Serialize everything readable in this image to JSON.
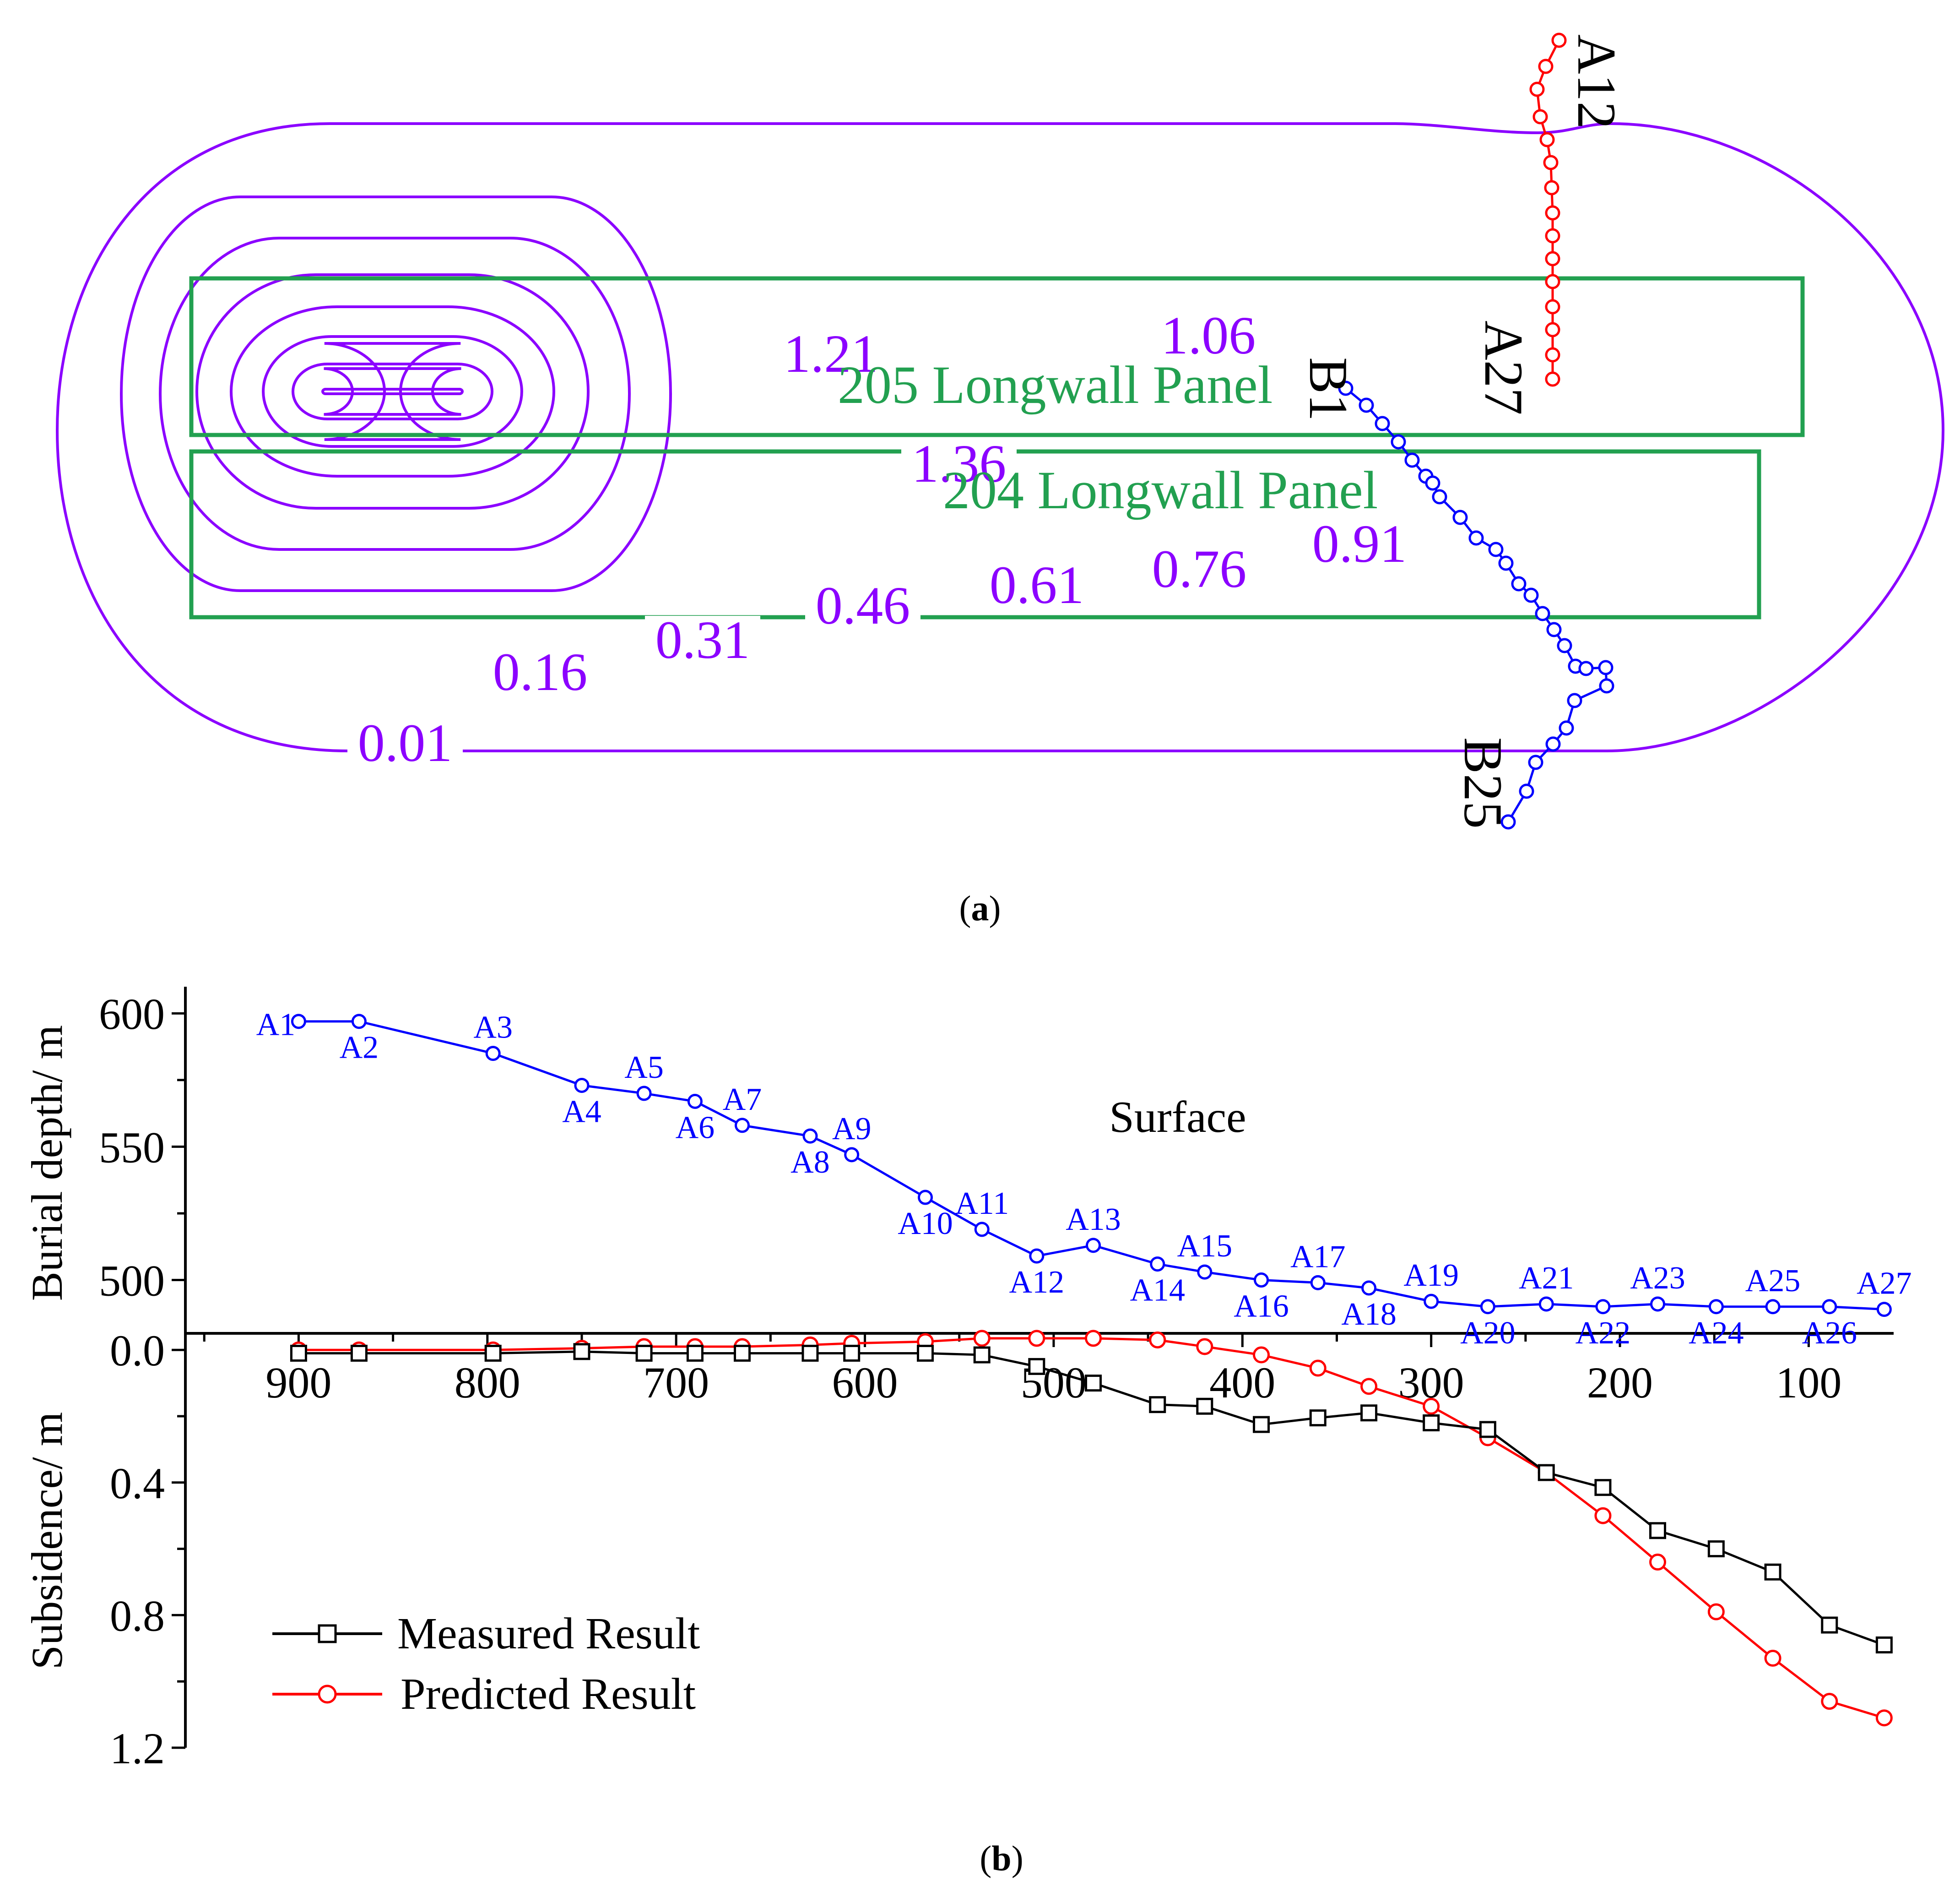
{
  "panel_a": {
    "caption": "(a)",
    "caption_letter": "a",
    "contour_color": "#8B00FF",
    "panel_color": "#22A050",
    "line_a_color": "#FF0000",
    "line_b_color": "#0000FF",
    "contour_labels": [
      "0.01",
      "0.16",
      "0.31",
      "0.46",
      "0.61",
      "0.76",
      "0.91",
      "1.06",
      "1.21",
      "1.36"
    ],
    "panel_labels": [
      "205 Longwall Panel",
      "204 Longwall Panel"
    ],
    "line_labels": [
      "A12",
      "A27",
      "B1",
      "B25"
    ]
  },
  "panel_b": {
    "caption": "(b)",
    "caption_letter": "b",
    "surface_label": "Surface",
    "legend": [
      {
        "name": "Measured Result",
        "color": "#000000",
        "marker": "square"
      },
      {
        "name": "Predicted Result",
        "color": "#FF0000",
        "marker": "circle"
      }
    ]
  },
  "chart_data": [
    {
      "type": "line",
      "title": "Surface",
      "xlabel": "",
      "ylabel": "Burial depth/ m",
      "xlim": [
        960,
        55
      ],
      "ylim": [
        480,
        610
      ],
      "xticks": [
        "900",
        "800",
        "700",
        "600",
        "500",
        "400",
        "300",
        "200",
        "100"
      ],
      "yticks": [
        "600",
        "550",
        "500"
      ],
      "series": [
        {
          "name": "Burial depth",
          "color": "#0000FF",
          "points": [
            {
              "label": "A1",
              "x": 900,
              "y": 597
            },
            {
              "label": "A2",
              "x": 868,
              "y": 597
            },
            {
              "label": "A3",
              "x": 797,
              "y": 585
            },
            {
              "label": "A4",
              "x": 750,
              "y": 573
            },
            {
              "label": "A5",
              "x": 717,
              "y": 570
            },
            {
              "label": "A6",
              "x": 690,
              "y": 567
            },
            {
              "label": "A7",
              "x": 665,
              "y": 558
            },
            {
              "label": "A8",
              "x": 629,
              "y": 554
            },
            {
              "label": "A9",
              "x": 607,
              "y": 547
            },
            {
              "label": "A10",
              "x": 568,
              "y": 531
            },
            {
              "label": "A11",
              "x": 538,
              "y": 519
            },
            {
              "label": "A12",
              "x": 509,
              "y": 509
            },
            {
              "label": "A13",
              "x": 479,
              "y": 513
            },
            {
              "label": "A14",
              "x": 445,
              "y": 506
            },
            {
              "label": "A15",
              "x": 420,
              "y": 503
            },
            {
              "label": "A16",
              "x": 390,
              "y": 500
            },
            {
              "label": "A17",
              "x": 360,
              "y": 499
            },
            {
              "label": "A18",
              "x": 333,
              "y": 497
            },
            {
              "label": "A19",
              "x": 300,
              "y": 492
            },
            {
              "label": "A20",
              "x": 270,
              "y": 490
            },
            {
              "label": "A21",
              "x": 239,
              "y": 491
            },
            {
              "label": "A22",
              "x": 209,
              "y": 490
            },
            {
              "label": "A23",
              "x": 180,
              "y": 491
            },
            {
              "label": "A24",
              "x": 149,
              "y": 490
            },
            {
              "label": "A25",
              "x": 119,
              "y": 490
            },
            {
              "label": "A26",
              "x": 89,
              "y": 490
            },
            {
              "label": "A27",
              "x": 60,
              "y": 489
            }
          ]
        }
      ]
    },
    {
      "type": "line",
      "title": "",
      "xlabel": "",
      "ylabel": "Subsidence/ m",
      "xlim": [
        960,
        55
      ],
      "ylim": [
        -0.05,
        1.2
      ],
      "yticks": [
        "0.0",
        "0.4",
        "0.8",
        "1.2"
      ],
      "x": [
        900,
        868,
        797,
        750,
        717,
        690,
        665,
        629,
        607,
        568,
        538,
        509,
        479,
        445,
        420,
        390,
        360,
        333,
        300,
        270,
        239,
        209,
        180,
        149,
        119,
        89,
        60
      ],
      "series": [
        {
          "name": "Measured Result",
          "color": "#000000",
          "values": [
            0.01,
            0.01,
            0.01,
            0.005,
            0.01,
            0.01,
            0.01,
            0.01,
            0.01,
            0.01,
            0.015,
            0.05,
            0.1,
            0.165,
            0.17,
            0.225,
            0.205,
            0.19,
            0.22,
            0.24,
            0.37,
            0.415,
            0.545,
            0.6,
            0.67,
            0.83,
            0.89
          ]
        },
        {
          "name": "Predicted Result",
          "color": "#FF0000",
          "values": [
            0.0,
            0.0,
            0.0,
            -0.005,
            -0.01,
            -0.01,
            -0.01,
            -0.015,
            -0.02,
            -0.025,
            -0.035,
            -0.035,
            -0.035,
            -0.03,
            -0.01,
            0.015,
            0.055,
            0.11,
            0.17,
            0.265,
            0.37,
            0.5,
            0.64,
            0.79,
            0.93,
            1.06,
            1.11
          ]
        }
      ]
    }
  ]
}
